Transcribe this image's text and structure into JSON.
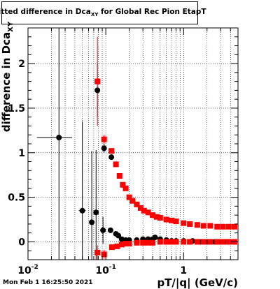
{
  "title": {
    "main": "Fitted difference in Dca",
    "sub": "XY",
    "rest": "  for Global Rec Pion EtapT"
  },
  "footer": "Mon Feb  1 16:25:50 2021",
  "chart_data": {
    "type": "scatter",
    "title": "Fitted difference in Dca_XY for Global Rec Pion EtapT",
    "xlabel": "pT/|q| (GeV/c)",
    "ylabel": {
      "main": "difference in Dca",
      "sub": "XY"
    },
    "xscale": "log",
    "xlim": [
      0.01,
      5.0
    ],
    "ylim": [
      -0.2,
      2.4
    ],
    "grid": true,
    "legend": "none",
    "x_ticks": [
      {
        "value": 0.01,
        "label": "10",
        "exp": "-2"
      },
      {
        "value": 0.1,
        "label": "10",
        "exp": "-1"
      },
      {
        "value": 1,
        "label": "1",
        "exp": ""
      }
    ],
    "y_ticks": [
      {
        "value": 0,
        "label": "0"
      },
      {
        "value": 0.5,
        "label": "0.5"
      },
      {
        "value": 1,
        "label": "1"
      },
      {
        "value": 1.5,
        "label": "1.5"
      },
      {
        "value": 2,
        "label": "2"
      }
    ],
    "series": [
      {
        "color": "#000000",
        "marker": "circle",
        "points": [
          {
            "x": 0.025,
            "y": 1.17,
            "xerr": [
              0.012,
              0.012
            ],
            "yerr": 2.5
          },
          {
            "x": 0.05,
            "y": 0.35,
            "xerr": [
              0.005,
              0.005
            ],
            "yerr": 1.0
          },
          {
            "x": 0.066,
            "y": 0.22,
            "yerr": 0.8
          },
          {
            "x": 0.075,
            "y": 0.33,
            "yerr": 0.7
          },
          {
            "x": 0.078,
            "y": 1.7,
            "yerr": 0.3
          },
          {
            "x": 0.092,
            "y": 0.13,
            "yerr": 0.15
          },
          {
            "x": 0.095,
            "y": 1.05,
            "yerr": 0.05
          },
          {
            "x": 0.115,
            "y": 0.13,
            "yerr": 0.03
          },
          {
            "x": 0.118,
            "y": 0.95,
            "yerr": 0.03
          },
          {
            "x": 0.135,
            "y": 0.09,
            "yerr": 0.02
          },
          {
            "x": 0.145,
            "y": 0.07,
            "yerr": 0.02
          },
          {
            "x": 0.16,
            "y": 0.03
          },
          {
            "x": 0.18,
            "y": 0.02
          },
          {
            "x": 0.2,
            "y": 0.02
          },
          {
            "x": 0.25,
            "y": 0.02
          },
          {
            "x": 0.3,
            "y": 0.03
          },
          {
            "x": 0.35,
            "y": 0.03
          },
          {
            "x": 0.4,
            "y": 0.03
          },
          {
            "x": 0.43,
            "y": 0.05
          },
          {
            "x": 0.5,
            "y": 0.03
          },
          {
            "x": 0.6,
            "y": 0.02
          },
          {
            "x": 0.7,
            "y": 0.01
          },
          {
            "x": 0.8,
            "y": 0.01
          },
          {
            "x": 1.0,
            "y": 0.01
          },
          {
            "x": 1.3,
            "y": 0.01
          },
          {
            "x": 1.6,
            "y": 0.0
          },
          {
            "x": 2.0,
            "y": 0.0
          },
          {
            "x": 2.5,
            "y": 0.0
          },
          {
            "x": 3.0,
            "y": 0.0
          },
          {
            "x": 3.6,
            "y": 0.0
          },
          {
            "x": 4.3,
            "y": 0.0
          }
        ]
      },
      {
        "color": "#ff0000",
        "marker": "square",
        "points": [
          {
            "x": 0.078,
            "y": 1.8,
            "yerr": 0.5
          },
          {
            "x": 0.078,
            "y": -0.12,
            "yerr": 0.08
          },
          {
            "x": 0.095,
            "y": 1.15,
            "yerr": 0.05
          },
          {
            "x": 0.095,
            "y": -0.14,
            "yerr": 0.05
          },
          {
            "x": 0.118,
            "y": 1.02,
            "yerr": 0.03
          },
          {
            "x": 0.12,
            "y": -0.06,
            "yerr": 0.03
          },
          {
            "x": 0.135,
            "y": 0.87,
            "yerr": 0.02
          },
          {
            "x": 0.14,
            "y": -0.05
          },
          {
            "x": 0.15,
            "y": 0.74
          },
          {
            "x": 0.16,
            "y": -0.03
          },
          {
            "x": 0.165,
            "y": 0.64
          },
          {
            "x": 0.18,
            "y": 0.6
          },
          {
            "x": 0.18,
            "y": -0.02
          },
          {
            "x": 0.2,
            "y": 0.5
          },
          {
            "x": 0.22,
            "y": 0.46
          },
          {
            "x": 0.25,
            "y": 0.42
          },
          {
            "x": 0.28,
            "y": 0.38
          },
          {
            "x": 0.31,
            "y": 0.35
          },
          {
            "x": 0.35,
            "y": 0.33
          },
          {
            "x": 0.4,
            "y": 0.3
          },
          {
            "x": 0.45,
            "y": 0.28
          },
          {
            "x": 0.5,
            "y": 0.27
          },
          {
            "x": 0.6,
            "y": 0.25
          },
          {
            "x": 0.7,
            "y": 0.24
          },
          {
            "x": 0.8,
            "y": 0.23
          },
          {
            "x": 1.0,
            "y": 0.21
          },
          {
            "x": 1.2,
            "y": 0.2
          },
          {
            "x": 1.5,
            "y": 0.19
          },
          {
            "x": 1.8,
            "y": 0.18
          },
          {
            "x": 2.2,
            "y": 0.18
          },
          {
            "x": 2.7,
            "y": 0.17
          },
          {
            "x": 3.2,
            "y": 0.17
          },
          {
            "x": 3.8,
            "y": 0.17
          },
          {
            "x": 4.5,
            "y": 0.17
          },
          {
            "x": 0.2,
            "y": -0.02
          },
          {
            "x": 0.25,
            "y": -0.01
          },
          {
            "x": 0.3,
            "y": -0.01
          },
          {
            "x": 0.35,
            "y": -0.01
          },
          {
            "x": 0.4,
            "y": -0.01
          },
          {
            "x": 0.5,
            "y": 0.0
          },
          {
            "x": 0.6,
            "y": 0.0
          },
          {
            "x": 0.7,
            "y": 0.0
          },
          {
            "x": 0.8,
            "y": 0.0
          },
          {
            "x": 1.0,
            "y": 0.0
          },
          {
            "x": 1.2,
            "y": 0.0
          },
          {
            "x": 1.5,
            "y": 0.0
          },
          {
            "x": 1.8,
            "y": 0.0
          },
          {
            "x": 2.2,
            "y": 0.0
          },
          {
            "x": 2.7,
            "y": 0.0
          },
          {
            "x": 3.2,
            "y": 0.0
          },
          {
            "x": 3.8,
            "y": 0.0
          },
          {
            "x": 4.5,
            "y": 0.0
          }
        ]
      }
    ]
  }
}
